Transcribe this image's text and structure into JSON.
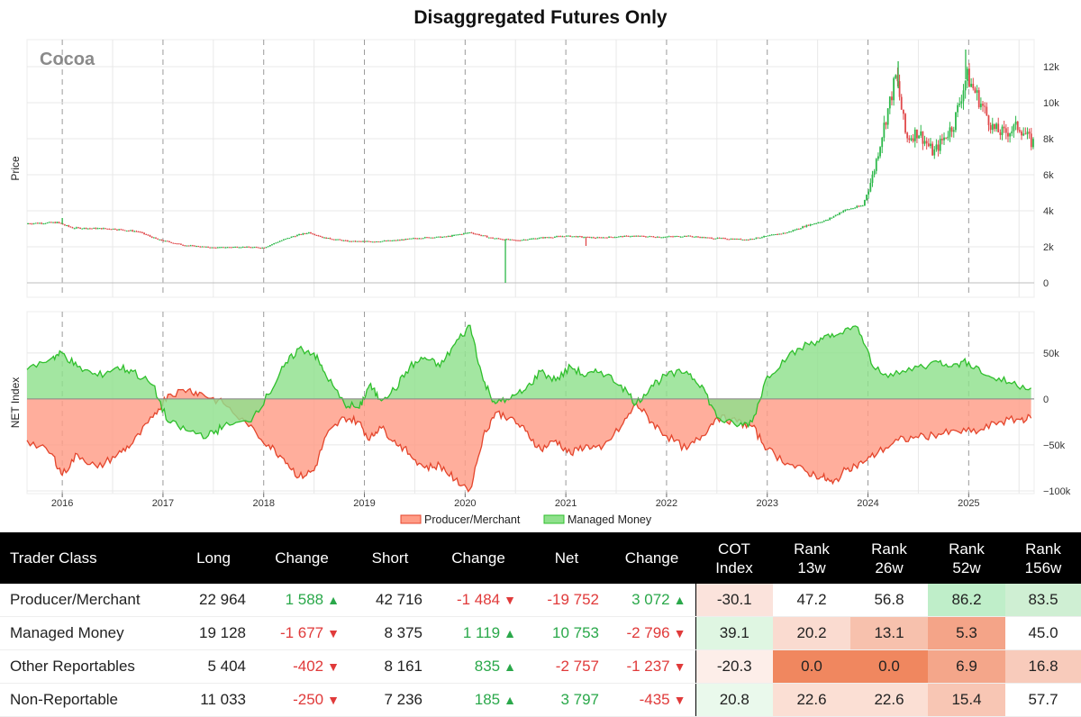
{
  "title": "Disaggregated Futures Only",
  "colors": {
    "producer_fill": "#ff9c86",
    "producer_line": "#e4452c",
    "managed_fill": "#8fe08c",
    "managed_line": "#2fbf2c",
    "candle_up": "#2db84a",
    "candle_down": "#e0484a",
    "grid": "#e8e8e8",
    "pos_text": "#2aa84a",
    "neg_text": "#e03a3a"
  },
  "chart_data": [
    {
      "type": "candlestick",
      "title": "Cocoa",
      "ylabel": "Price",
      "ylim": [
        -800,
        13500
      ],
      "yticks": [
        0,
        2000,
        4000,
        6000,
        8000,
        10000,
        12000
      ],
      "ytick_labels": [
        "0",
        "2k",
        "4k",
        "6k",
        "8k",
        "10k",
        "12k"
      ],
      "xlim": [
        2015.65,
        2025.65
      ],
      "price_keyframes": [
        [
          2015.65,
          3300
        ],
        [
          2015.95,
          3350
        ],
        [
          2016.1,
          3050
        ],
        [
          2016.5,
          3000
        ],
        [
          2016.75,
          2850
        ],
        [
          2016.95,
          2400
        ],
        [
          2017.2,
          2100
        ],
        [
          2017.5,
          1950
        ],
        [
          2017.75,
          2000
        ],
        [
          2018.0,
          1950
        ],
        [
          2018.15,
          2300
        ],
        [
          2018.3,
          2600
        ],
        [
          2018.45,
          2800
        ],
        [
          2018.6,
          2500
        ],
        [
          2018.85,
          2300
        ],
        [
          2019.1,
          2300
        ],
        [
          2019.3,
          2350
        ],
        [
          2019.55,
          2500
        ],
        [
          2019.8,
          2550
        ],
        [
          2020.05,
          2800
        ],
        [
          2020.25,
          2500
        ],
        [
          2020.5,
          2350
        ],
        [
          2020.75,
          2500
        ],
        [
          2021.0,
          2600
        ],
        [
          2021.3,
          2500
        ],
        [
          2021.65,
          2600
        ],
        [
          2021.95,
          2550
        ],
        [
          2022.2,
          2600
        ],
        [
          2022.4,
          2500
        ],
        [
          2022.6,
          2450
        ],
        [
          2022.8,
          2400
        ],
        [
          2022.95,
          2550
        ],
        [
          2023.2,
          2800
        ],
        [
          2023.4,
          3200
        ],
        [
          2023.6,
          3500
        ],
        [
          2023.75,
          4000
        ],
        [
          2023.95,
          4300
        ],
        [
          2024.05,
          6000
        ],
        [
          2024.15,
          8500
        ],
        [
          2024.28,
          11500
        ],
        [
          2024.38,
          8000
        ],
        [
          2024.5,
          8400
        ],
        [
          2024.65,
          7200
        ],
        [
          2024.85,
          8800
        ],
        [
          2024.98,
          11500
        ],
        [
          2025.1,
          10200
        ],
        [
          2025.25,
          8500
        ],
        [
          2025.35,
          8300
        ],
        [
          2025.5,
          8700
        ],
        [
          2025.62,
          7800
        ]
      ],
      "spikes": [
        {
          "x": 2020.4,
          "low": 0
        },
        {
          "x": 2016.0,
          "high": 3600
        },
        {
          "x": 2021.2,
          "low": 2050
        },
        {
          "x": 2024.3,
          "high": 12300
        },
        {
          "x": 2024.97,
          "high": 12950
        }
      ]
    },
    {
      "type": "area",
      "ylabel": "NET Index",
      "ylim": [
        -103000,
        95000
      ],
      "yticks": [
        -100000,
        -50000,
        0,
        50000
      ],
      "ytick_labels": [
        "−100k",
        "−50k",
        "0",
        "50k"
      ],
      "x_tick_years": [
        2016,
        2017,
        2018,
        2019,
        2020,
        2021,
        2022,
        2023,
        2024,
        2025
      ],
      "x_tick_labels": [
        "2016",
        "2017",
        "2018",
        "2019",
        "2020",
        "2021",
        "2022",
        "2023",
        "2024",
        "2025"
      ],
      "legend": [
        "Producer/Merchant",
        "Managed Money"
      ],
      "series": [
        {
          "name": "Producer/Merchant",
          "points": [
            [
              2015.65,
              -45000
            ],
            [
              2015.9,
              -60000
            ],
            [
              2016.0,
              -83000
            ],
            [
              2016.15,
              -60000
            ],
            [
              2016.35,
              -75000
            ],
            [
              2016.55,
              -60000
            ],
            [
              2016.7,
              -48000
            ],
            [
              2016.9,
              -20000
            ],
            [
              2017.05,
              5000
            ],
            [
              2017.25,
              10000
            ],
            [
              2017.4,
              5000
            ],
            [
              2017.6,
              -5000
            ],
            [
              2017.85,
              -30000
            ],
            [
              2018.05,
              -50000
            ],
            [
              2018.2,
              -65000
            ],
            [
              2018.35,
              -85000
            ],
            [
              2018.5,
              -78000
            ],
            [
              2018.62,
              -40000
            ],
            [
              2018.8,
              -20000
            ],
            [
              2018.95,
              -25000
            ],
            [
              2019.05,
              -45000
            ],
            [
              2019.15,
              -30000
            ],
            [
              2019.3,
              -45000
            ],
            [
              2019.45,
              -60000
            ],
            [
              2019.6,
              -75000
            ],
            [
              2019.75,
              -72000
            ],
            [
              2019.9,
              -88000
            ],
            [
              2020.05,
              -98000
            ],
            [
              2020.18,
              -40000
            ],
            [
              2020.3,
              -15000
            ],
            [
              2020.45,
              -20000
            ],
            [
              2020.6,
              -35000
            ],
            [
              2020.75,
              -55000
            ],
            [
              2020.9,
              -45000
            ],
            [
              2021.05,
              -60000
            ],
            [
              2021.2,
              -50000
            ],
            [
              2021.35,
              -55000
            ],
            [
              2021.55,
              -30000
            ],
            [
              2021.7,
              -5000
            ],
            [
              2021.85,
              -25000
            ],
            [
              2022.0,
              -40000
            ],
            [
              2022.2,
              -55000
            ],
            [
              2022.35,
              -40000
            ],
            [
              2022.5,
              -20000
            ],
            [
              2022.7,
              -25000
            ],
            [
              2022.85,
              -30000
            ],
            [
              2023.0,
              -55000
            ],
            [
              2023.2,
              -70000
            ],
            [
              2023.4,
              -80000
            ],
            [
              2023.55,
              -85000
            ],
            [
              2023.65,
              -92000
            ],
            [
              2023.8,
              -75000
            ],
            [
              2023.95,
              -70000
            ],
            [
              2024.1,
              -58000
            ],
            [
              2024.3,
              -45000
            ],
            [
              2024.5,
              -42000
            ],
            [
              2024.7,
              -38000
            ],
            [
              2024.9,
              -36000
            ],
            [
              2025.1,
              -35000
            ],
            [
              2025.3,
              -25000
            ],
            [
              2025.5,
              -22000
            ],
            [
              2025.62,
              -21000
            ]
          ]
        },
        {
          "name": "Managed Money",
          "points": [
            [
              2015.65,
              32000
            ],
            [
              2015.9,
              45000
            ],
            [
              2016.0,
              50000
            ],
            [
              2016.15,
              35000
            ],
            [
              2016.35,
              25000
            ],
            [
              2016.55,
              35000
            ],
            [
              2016.7,
              30000
            ],
            [
              2016.9,
              15000
            ],
            [
              2017.05,
              -25000
            ],
            [
              2017.25,
              -35000
            ],
            [
              2017.45,
              -40000
            ],
            [
              2017.6,
              -30000
            ],
            [
              2017.85,
              -25000
            ],
            [
              2018.05,
              5000
            ],
            [
              2018.2,
              35000
            ],
            [
              2018.35,
              55000
            ],
            [
              2018.5,
              50000
            ],
            [
              2018.62,
              25000
            ],
            [
              2018.8,
              -5000
            ],
            [
              2018.95,
              -10000
            ],
            [
              2019.05,
              15000
            ],
            [
              2019.15,
              0
            ],
            [
              2019.3,
              10000
            ],
            [
              2019.45,
              35000
            ],
            [
              2019.6,
              45000
            ],
            [
              2019.75,
              35000
            ],
            [
              2019.9,
              60000
            ],
            [
              2020.05,
              80000
            ],
            [
              2020.18,
              20000
            ],
            [
              2020.3,
              -5000
            ],
            [
              2020.45,
              0
            ],
            [
              2020.6,
              10000
            ],
            [
              2020.75,
              30000
            ],
            [
              2020.9,
              20000
            ],
            [
              2021.05,
              35000
            ],
            [
              2021.2,
              25000
            ],
            [
              2021.35,
              30000
            ],
            [
              2021.55,
              15000
            ],
            [
              2021.7,
              -5000
            ],
            [
              2021.85,
              15000
            ],
            [
              2022.0,
              25000
            ],
            [
              2022.2,
              30000
            ],
            [
              2022.35,
              15000
            ],
            [
              2022.5,
              -20000
            ],
            [
              2022.7,
              -30000
            ],
            [
              2022.85,
              -25000
            ],
            [
              2023.0,
              25000
            ],
            [
              2023.2,
              45000
            ],
            [
              2023.4,
              60000
            ],
            [
              2023.55,
              65000
            ],
            [
              2023.7,
              70000
            ],
            [
              2023.9,
              78000
            ],
            [
              2024.05,
              35000
            ],
            [
              2024.25,
              25000
            ],
            [
              2024.5,
              35000
            ],
            [
              2024.7,
              40000
            ],
            [
              2024.85,
              38000
            ],
            [
              2025.0,
              40000
            ],
            [
              2025.2,
              25000
            ],
            [
              2025.4,
              18000
            ],
            [
              2025.62,
              12000
            ]
          ]
        }
      ]
    }
  ],
  "table": {
    "headers": [
      "Trader Class",
      "Long",
      "Change",
      "Short",
      "Change",
      "Net",
      "Change",
      "COT\nIndex",
      "Rank\n13w",
      "Rank\n26w",
      "Rank\n52w",
      "Rank\n156w"
    ],
    "rows": [
      {
        "name": "Producer/Merchant",
        "long": "22 964",
        "long_chg": {
          "text": "1 588",
          "dir": "up"
        },
        "short": "42 716",
        "short_chg": {
          "text": "-1 484",
          "dir": "down"
        },
        "net": {
          "text": "-19 752",
          "dir": "down"
        },
        "net_chg": {
          "text": "3 072",
          "dir": "up"
        },
        "cot_index": "-30.1",
        "ranks": [
          "47.2",
          "56.8",
          "86.2",
          "83.5"
        ],
        "heat_colors": [
          "#fbe3dc",
          "#ffffff",
          "#ffffff",
          "#bfeec9",
          "#cfefd3"
        ]
      },
      {
        "name": "Managed Money",
        "long": "19 128",
        "long_chg": {
          "text": "-1 677",
          "dir": "down"
        },
        "short": "8 375",
        "short_chg": {
          "text": "1 119",
          "dir": "up"
        },
        "net": {
          "text": "10 753",
          "dir": "up"
        },
        "net_chg": {
          "text": "-2 796",
          "dir": "down"
        },
        "cot_index": "39.1",
        "ranks": [
          "20.2",
          "13.1",
          "5.3",
          "45.0"
        ],
        "heat_colors": [
          "#dff6e2",
          "#fadbd0",
          "#f7c1ad",
          "#f4a488",
          "#ffffff"
        ]
      },
      {
        "name": "Other Reportables",
        "long": "5 404",
        "long_chg": {
          "text": "-402",
          "dir": "down"
        },
        "short": "8 161",
        "short_chg": {
          "text": "835",
          "dir": "up"
        },
        "net": {
          "text": "-2 757",
          "dir": "down"
        },
        "net_chg": {
          "text": "-1 237",
          "dir": "down"
        },
        "cot_index": "-20.3",
        "ranks": [
          "0.0",
          "0.0",
          "6.9",
          "16.8"
        ],
        "heat_colors": [
          "#fdeee9",
          "#f0875f",
          "#f0875f",
          "#f4a68a",
          "#f8cbbb"
        ]
      },
      {
        "name": "Non-Reportable",
        "long": "11 033",
        "long_chg": {
          "text": "-250",
          "dir": "down"
        },
        "short": "7 236",
        "short_chg": {
          "text": "185",
          "dir": "up"
        },
        "net": {
          "text": "3 797",
          "dir": "up"
        },
        "net_chg": {
          "text": "-435",
          "dir": "down"
        },
        "cot_index": "20.8",
        "ranks": [
          "22.6",
          "22.6",
          "15.4",
          "57.7"
        ],
        "heat_colors": [
          "#eaf9ec",
          "#fbdfd4",
          "#fbdfd4",
          "#f8c6b4",
          "#ffffff"
        ]
      }
    ]
  }
}
